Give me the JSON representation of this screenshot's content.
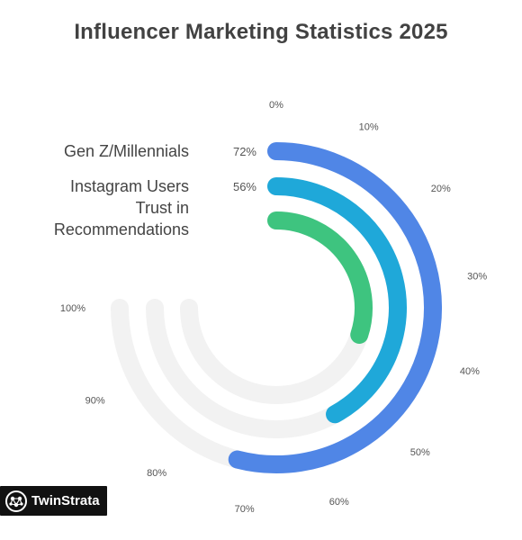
{
  "chart_data": {
    "type": "radial-bar",
    "title": "Influencer Marketing Statistics 2025",
    "range": [
      0,
      100
    ],
    "ticks": [
      "0%",
      "10%",
      "20%",
      "30%",
      "40%",
      "50%",
      "60%",
      "70%",
      "80%",
      "90%",
      "100%"
    ],
    "series": [
      {
        "name": "Gen Z/Millennials",
        "value": 72,
        "value_label": "72%",
        "color": "#5086e6"
      },
      {
        "name": "Instagram Users Trust in Recommendations",
        "value": 56,
        "value_label": "56%",
        "color": "#1fa8d9"
      },
      {
        "name": "",
        "value": 40,
        "value_label": "",
        "color": "#3ec47f"
      }
    ],
    "track_color": "#f2f2f2"
  },
  "brand": {
    "name": "TwinStrata",
    "icon": "network-logo-icon"
  }
}
